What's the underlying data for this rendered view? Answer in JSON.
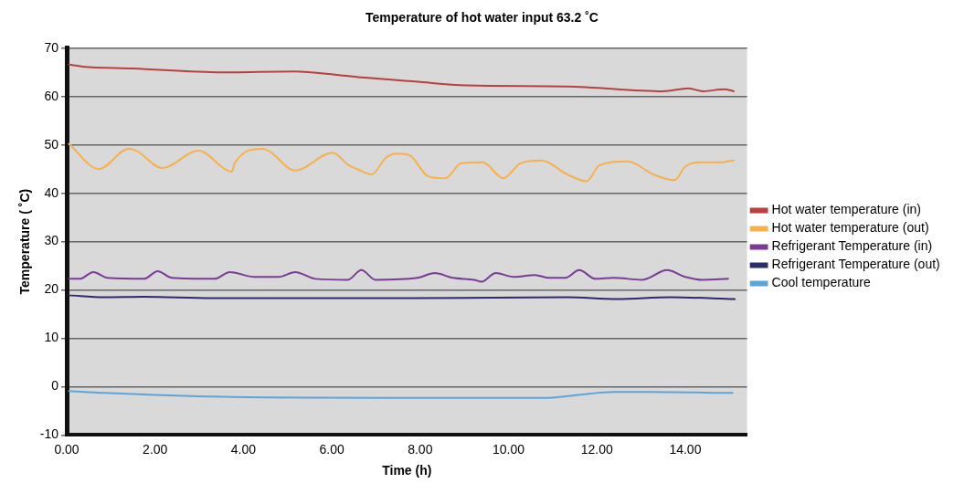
{
  "chart_data": {
    "type": "line",
    "title": "Temperature of hot water input 63.2 ˚C",
    "xlabel": "Time (h)",
    "ylabel": "Temperature ( ˚C)",
    "xlim": [
      0,
      15.4
    ],
    "ylim": [
      -10,
      70
    ],
    "xticks": [
      {
        "value": 0,
        "label": "0.00"
      },
      {
        "value": 2,
        "label": "2.00"
      },
      {
        "value": 4,
        "label": "4.00"
      },
      {
        "value": 6,
        "label": "6.00"
      },
      {
        "value": 8,
        "label": "8.00"
      },
      {
        "value": 10,
        "label": "10.00"
      },
      {
        "value": 12,
        "label": "12.00"
      },
      {
        "value": 14,
        "label": "14.00"
      }
    ],
    "yticks": [
      -10,
      0,
      10,
      20,
      30,
      40,
      50,
      60,
      70
    ],
    "grid": "y",
    "legend": "right",
    "marker": "none",
    "line_style": "solid",
    "series": [
      {
        "name": "Hot water temperature (in)",
        "color": "#b8413f",
        "x": [
          0.05,
          0.36,
          1.5,
          3.52,
          5.15,
          5.53,
          6.75,
          7.89,
          9.05,
          11.33,
          13.5,
          14.08,
          14.4,
          14.88,
          15.1
        ],
        "values": [
          66.6,
          66.2,
          65.8,
          65.0,
          65.2,
          65.0,
          63.9,
          63.1,
          62.3,
          62.1,
          61.1,
          61.7,
          61.1,
          61.5,
          61.1
        ]
      },
      {
        "name": "Hot water temperature (out)",
        "color": "#f7b04e",
        "x": [
          0.05,
          0.73,
          1.4,
          1.58,
          2.16,
          2.98,
          3.74,
          3.8,
          4.42,
          4.57,
          5.17,
          6.02,
          6.38,
          6.6,
          6.9,
          7.23,
          7.47,
          7.77,
          8.18,
          8.57,
          8.93,
          9.42,
          9.88,
          10.27,
          10.75,
          11.33,
          11.77,
          12.06,
          12.7,
          13.28,
          13.76,
          14.0,
          14.32,
          14.8,
          15.1
        ],
        "values": [
          50.2,
          45.0,
          49.2,
          48.8,
          45.2,
          48.8,
          44.5,
          46.2,
          49.2,
          48.8,
          44.7,
          48.4,
          45.8,
          44.9,
          43.9,
          47.4,
          48.2,
          47.8,
          43.5,
          43.1,
          46.2,
          46.4,
          43.1,
          46.2,
          46.8,
          43.9,
          42.5,
          45.8,
          46.6,
          43.9,
          42.7,
          45.5,
          46.4,
          46.4,
          46.8
        ]
      },
      {
        "name": "Refrigerant Temperature (in)",
        "color": "#7b3a96",
        "x": [
          0.05,
          0.3,
          0.6,
          0.92,
          1.75,
          2.06,
          2.38,
          3.35,
          3.69,
          4.25,
          4.8,
          5.17,
          5.63,
          6.36,
          6.67,
          6.99,
          7.94,
          8.33,
          8.74,
          9.22,
          9.39,
          9.71,
          10.12,
          10.6,
          10.92,
          11.29,
          11.6,
          11.97,
          12.38,
          13.03,
          13.59,
          14.0,
          14.39,
          14.97
        ],
        "values": [
          22.3,
          22.3,
          23.7,
          22.5,
          22.3,
          23.9,
          22.5,
          22.3,
          23.7,
          22.7,
          22.7,
          23.7,
          22.3,
          22.1,
          24.1,
          22.1,
          22.5,
          23.5,
          22.5,
          22.1,
          21.7,
          23.5,
          22.7,
          23.1,
          22.5,
          22.5,
          24.1,
          22.3,
          22.5,
          22.1,
          24.1,
          22.7,
          22.1,
          22.3
        ]
      },
      {
        "name": "Refrigerant Temperature (out)",
        "color": "#2e2a6e",
        "x": [
          0.05,
          0.85,
          1.75,
          3.28,
          7.89,
          11.33,
          12.45,
          13.67,
          15.12
        ],
        "values": [
          18.9,
          18.5,
          18.6,
          18.3,
          18.3,
          18.5,
          18.1,
          18.5,
          18.1
        ]
      },
      {
        "name": "Cool temperature",
        "color": "#5ea4d6",
        "x": [
          0.05,
          0.85,
          3.52,
          7.89,
          10.92,
          11.58,
          12.38,
          13.18,
          15.07
        ],
        "values": [
          -0.9,
          -1.3,
          -2.1,
          -2.3,
          -2.3,
          -1.7,
          -1.1,
          -1.1,
          -1.3
        ]
      }
    ]
  }
}
